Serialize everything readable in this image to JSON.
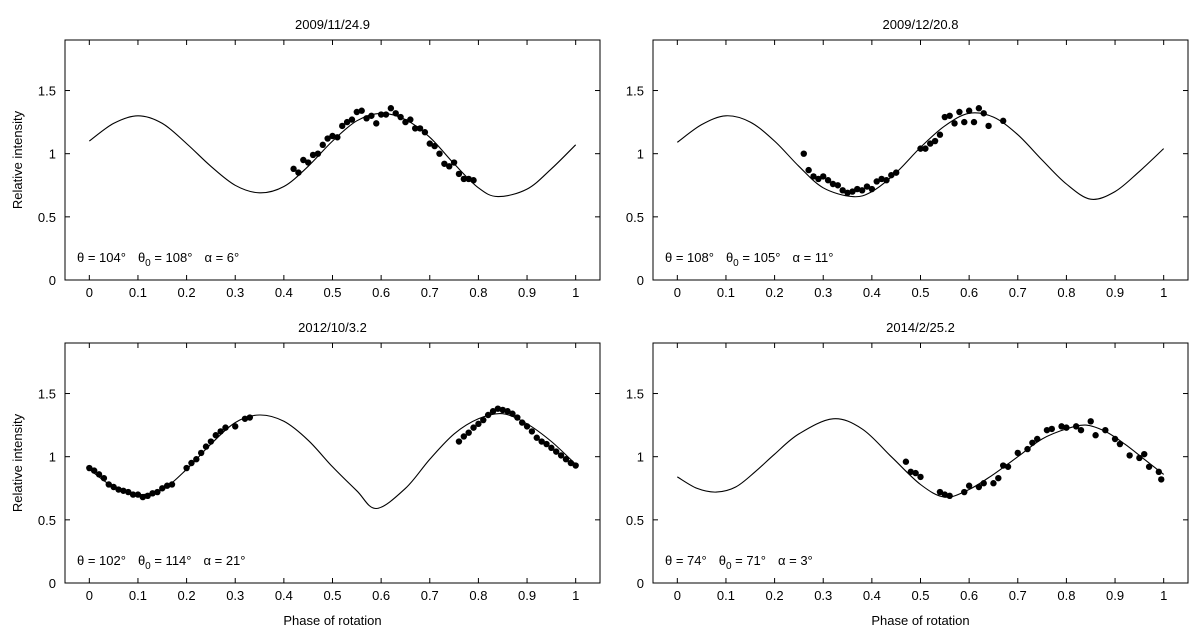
{
  "chart_data": [
    {
      "type": "line",
      "title": "2009/11/24.9",
      "xlabel": "",
      "ylabel": "Relative intensity",
      "xlim": [
        -0.05,
        1.05
      ],
      "ylim": [
        0,
        1.9
      ],
      "xticks": [
        0,
        0.1,
        0.2,
        0.3,
        0.4,
        0.5,
        0.6,
        0.7,
        0.8,
        0.9,
        1
      ],
      "xtick_labels": [
        "0",
        "0.1",
        "0.2",
        "0.3",
        "0.4",
        "0.5",
        "0.6",
        "0.7",
        "0.8",
        "0.9",
        "1"
      ],
      "yticks": [
        0,
        0.5,
        1,
        1.5
      ],
      "ytick_labels": [
        "0",
        "0.5",
        "1",
        "1.5"
      ],
      "grid": false,
      "annotation": {
        "theta": "θ = 104°",
        "theta0_symbol": "θ",
        "theta0_sub": "0",
        "theta0_rest": " = 108°",
        "alpha": "α = 6°"
      },
      "model_curve": {
        "x": [
          0,
          0.05,
          0.1,
          0.15,
          0.2,
          0.25,
          0.3,
          0.35,
          0.4,
          0.45,
          0.5,
          0.55,
          0.6,
          0.65,
          0.7,
          0.75,
          0.8,
          0.84,
          0.9,
          0.95,
          1
        ],
        "y": [
          1.1,
          1.24,
          1.3,
          1.24,
          1.08,
          0.9,
          0.75,
          0.69,
          0.74,
          0.9,
          1.1,
          1.26,
          1.32,
          1.27,
          1.13,
          0.92,
          0.73,
          0.66,
          0.72,
          0.88,
          1.07
        ]
      },
      "observations": {
        "x": [
          0.42,
          0.43,
          0.44,
          0.45,
          0.46,
          0.47,
          0.48,
          0.49,
          0.5,
          0.51,
          0.52,
          0.53,
          0.54,
          0.55,
          0.56,
          0.57,
          0.58,
          0.59,
          0.6,
          0.61,
          0.62,
          0.63,
          0.64,
          0.65,
          0.66,
          0.67,
          0.68,
          0.69,
          0.7,
          0.71,
          0.72,
          0.73,
          0.74,
          0.75,
          0.76,
          0.77,
          0.78,
          0.79
        ],
        "y": [
          0.88,
          0.85,
          0.95,
          0.93,
          0.99,
          1.0,
          1.07,
          1.12,
          1.14,
          1.13,
          1.22,
          1.25,
          1.27,
          1.33,
          1.34,
          1.28,
          1.3,
          1.24,
          1.31,
          1.31,
          1.36,
          1.32,
          1.29,
          1.25,
          1.27,
          1.2,
          1.2,
          1.17,
          1.08,
          1.06,
          1.0,
          0.92,
          0.9,
          0.93,
          0.84,
          0.8,
          0.8,
          0.79
        ]
      }
    },
    {
      "type": "line",
      "title": "2009/12/20.8",
      "xlabel": "",
      "ylabel": "",
      "xlim": [
        -0.05,
        1.05
      ],
      "ylim": [
        0,
        1.9
      ],
      "xticks": [
        0,
        0.1,
        0.2,
        0.3,
        0.4,
        0.5,
        0.6,
        0.7,
        0.8,
        0.9,
        1
      ],
      "xtick_labels": [
        "0",
        "0.1",
        "0.2",
        "0.3",
        "0.4",
        "0.5",
        "0.6",
        "0.7",
        "0.8",
        "0.9",
        "1"
      ],
      "yticks": [
        0,
        0.5,
        1,
        1.5
      ],
      "ytick_labels": [
        "0",
        "0.5",
        "1",
        "1.5"
      ],
      "grid": false,
      "annotation": {
        "theta": "θ = 108°",
        "theta0_symbol": "θ",
        "theta0_sub": "0",
        "theta0_rest": " = 105°",
        "alpha": "α = 11°"
      },
      "model_curve": {
        "x": [
          0,
          0.05,
          0.1,
          0.15,
          0.2,
          0.25,
          0.3,
          0.36,
          0.4,
          0.45,
          0.5,
          0.55,
          0.6,
          0.65,
          0.7,
          0.75,
          0.8,
          0.85,
          0.9,
          0.95,
          1
        ],
        "y": [
          1.09,
          1.23,
          1.3,
          1.25,
          1.1,
          0.9,
          0.73,
          0.66,
          0.7,
          0.85,
          1.05,
          1.22,
          1.32,
          1.29,
          1.15,
          0.95,
          0.76,
          0.64,
          0.7,
          0.86,
          1.04
        ]
      },
      "observations": {
        "x": [
          0.26,
          0.27,
          0.28,
          0.29,
          0.3,
          0.31,
          0.32,
          0.33,
          0.34,
          0.35,
          0.36,
          0.37,
          0.38,
          0.39,
          0.4,
          0.41,
          0.42,
          0.43,
          0.44,
          0.45,
          0.5,
          0.51,
          0.52,
          0.53,
          0.54,
          0.55,
          0.56,
          0.57,
          0.58,
          0.59,
          0.6,
          0.61,
          0.62,
          0.63,
          0.64,
          0.67
        ],
        "y": [
          1.0,
          0.87,
          0.82,
          0.8,
          0.82,
          0.79,
          0.76,
          0.75,
          0.71,
          0.69,
          0.7,
          0.72,
          0.71,
          0.74,
          0.72,
          0.78,
          0.8,
          0.79,
          0.83,
          0.85,
          1.04,
          1.04,
          1.08,
          1.1,
          1.15,
          1.29,
          1.3,
          1.24,
          1.33,
          1.25,
          1.34,
          1.25,
          1.36,
          1.32,
          1.22,
          1.26
        ]
      }
    },
    {
      "type": "line",
      "title": "2012/10/3.2",
      "xlabel": "Phase of rotation",
      "ylabel": "Relative intensity",
      "xlim": [
        -0.05,
        1.05
      ],
      "ylim": [
        0,
        1.9
      ],
      "xticks": [
        0,
        0.1,
        0.2,
        0.3,
        0.4,
        0.5,
        0.6,
        0.7,
        0.8,
        0.9,
        1
      ],
      "xtick_labels": [
        "0",
        "0.1",
        "0.2",
        "0.3",
        "0.4",
        "0.5",
        "0.6",
        "0.7",
        "0.8",
        "0.9",
        "1"
      ],
      "yticks": [
        0,
        0.5,
        1,
        1.5
      ],
      "ytick_labels": [
        "0",
        "0.5",
        "1",
        "1.5"
      ],
      "grid": false,
      "annotation": {
        "theta": "θ = 102°",
        "theta0_symbol": "θ",
        "theta0_sub": "0",
        "theta0_rest": " = 114°",
        "alpha": "α = 21°"
      },
      "model_curve": {
        "x": [
          0,
          0.05,
          0.1,
          0.15,
          0.2,
          0.25,
          0.3,
          0.35,
          0.4,
          0.45,
          0.5,
          0.55,
          0.59,
          0.65,
          0.7,
          0.75,
          0.8,
          0.85,
          0.9,
          0.95,
          1
        ],
        "y": [
          0.9,
          0.76,
          0.7,
          0.74,
          0.9,
          1.1,
          1.27,
          1.33,
          1.28,
          1.13,
          0.92,
          0.73,
          0.59,
          0.75,
          0.98,
          1.18,
          1.3,
          1.34,
          1.26,
          1.12,
          0.94
        ]
      },
      "observations": {
        "x": [
          0,
          0.01,
          0.02,
          0.03,
          0.04,
          0.05,
          0.06,
          0.07,
          0.08,
          0.09,
          0.1,
          0.11,
          0.12,
          0.13,
          0.14,
          0.15,
          0.16,
          0.17,
          0.2,
          0.21,
          0.22,
          0.23,
          0.24,
          0.25,
          0.26,
          0.27,
          0.28,
          0.3,
          0.32,
          0.33,
          0.76,
          0.77,
          0.78,
          0.79,
          0.8,
          0.81,
          0.82,
          0.83,
          0.84,
          0.85,
          0.86,
          0.87,
          0.88,
          0.89,
          0.9,
          0.91,
          0.92,
          0.93,
          0.94,
          0.95,
          0.96,
          0.97,
          0.98,
          0.99,
          1
        ],
        "y": [
          0.91,
          0.89,
          0.86,
          0.83,
          0.78,
          0.76,
          0.74,
          0.73,
          0.72,
          0.7,
          0.7,
          0.68,
          0.69,
          0.71,
          0.72,
          0.75,
          0.77,
          0.78,
          0.91,
          0.95,
          0.98,
          1.03,
          1.08,
          1.12,
          1.17,
          1.2,
          1.23,
          1.24,
          1.3,
          1.31,
          1.12,
          1.16,
          1.19,
          1.23,
          1.26,
          1.29,
          1.33,
          1.36,
          1.38,
          1.37,
          1.36,
          1.34,
          1.31,
          1.27,
          1.24,
          1.2,
          1.15,
          1.12,
          1.1,
          1.07,
          1.04,
          1.01,
          0.98,
          0.95,
          0.93
        ]
      }
    },
    {
      "type": "line",
      "title": "2014/2/25.2",
      "xlabel": "Phase of rotation",
      "ylabel": "",
      "xlim": [
        -0.05,
        1.05
      ],
      "ylim": [
        0,
        1.9
      ],
      "xticks": [
        0,
        0.1,
        0.2,
        0.3,
        0.4,
        0.5,
        0.6,
        0.7,
        0.8,
        0.9,
        1
      ],
      "xtick_labels": [
        "0",
        "0.1",
        "0.2",
        "0.3",
        "0.4",
        "0.5",
        "0.6",
        "0.7",
        "0.8",
        "0.9",
        "1"
      ],
      "yticks": [
        0,
        0.5,
        1,
        1.5
      ],
      "ytick_labels": [
        "0",
        "0.5",
        "1",
        "1.5"
      ],
      "grid": false,
      "annotation": {
        "theta": "θ = 74°",
        "theta0_symbol": "θ",
        "theta0_sub": "0",
        "theta0_rest": " = 71°",
        "alpha": "α = 3°"
      },
      "model_curve": {
        "x": [
          0,
          0.04,
          0.08,
          0.12,
          0.16,
          0.2,
          0.25,
          0.32,
          0.38,
          0.44,
          0.5,
          0.55,
          0.6,
          0.65,
          0.7,
          0.75,
          0.8,
          0.84,
          0.88,
          0.92,
          0.96,
          1
        ],
        "y": [
          0.84,
          0.75,
          0.72,
          0.76,
          0.88,
          1.02,
          1.18,
          1.3,
          1.22,
          1.0,
          0.78,
          0.68,
          0.74,
          0.86,
          1.0,
          1.14,
          1.22,
          1.25,
          1.2,
          1.1,
          0.98,
          0.86
        ]
      },
      "observations": {
        "x": [
          0.47,
          0.48,
          0.49,
          0.5,
          0.54,
          0.55,
          0.56,
          0.59,
          0.6,
          0.62,
          0.63,
          0.65,
          0.66,
          0.67,
          0.68,
          0.7,
          0.72,
          0.73,
          0.74,
          0.76,
          0.77,
          0.79,
          0.8,
          0.82,
          0.83,
          0.85,
          0.86,
          0.88,
          0.9,
          0.91,
          0.93,
          0.95,
          0.96,
          0.97,
          0.99,
          0.995
        ],
        "y": [
          0.96,
          0.88,
          0.87,
          0.84,
          0.72,
          0.7,
          0.69,
          0.72,
          0.77,
          0.76,
          0.79,
          0.79,
          0.83,
          0.93,
          0.92,
          1.03,
          1.06,
          1.11,
          1.14,
          1.21,
          1.22,
          1.24,
          1.23,
          1.24,
          1.21,
          1.28,
          1.17,
          1.21,
          1.14,
          1.1,
          1.01,
          0.99,
          1.02,
          0.92,
          0.88,
          0.82
        ]
      }
    }
  ]
}
